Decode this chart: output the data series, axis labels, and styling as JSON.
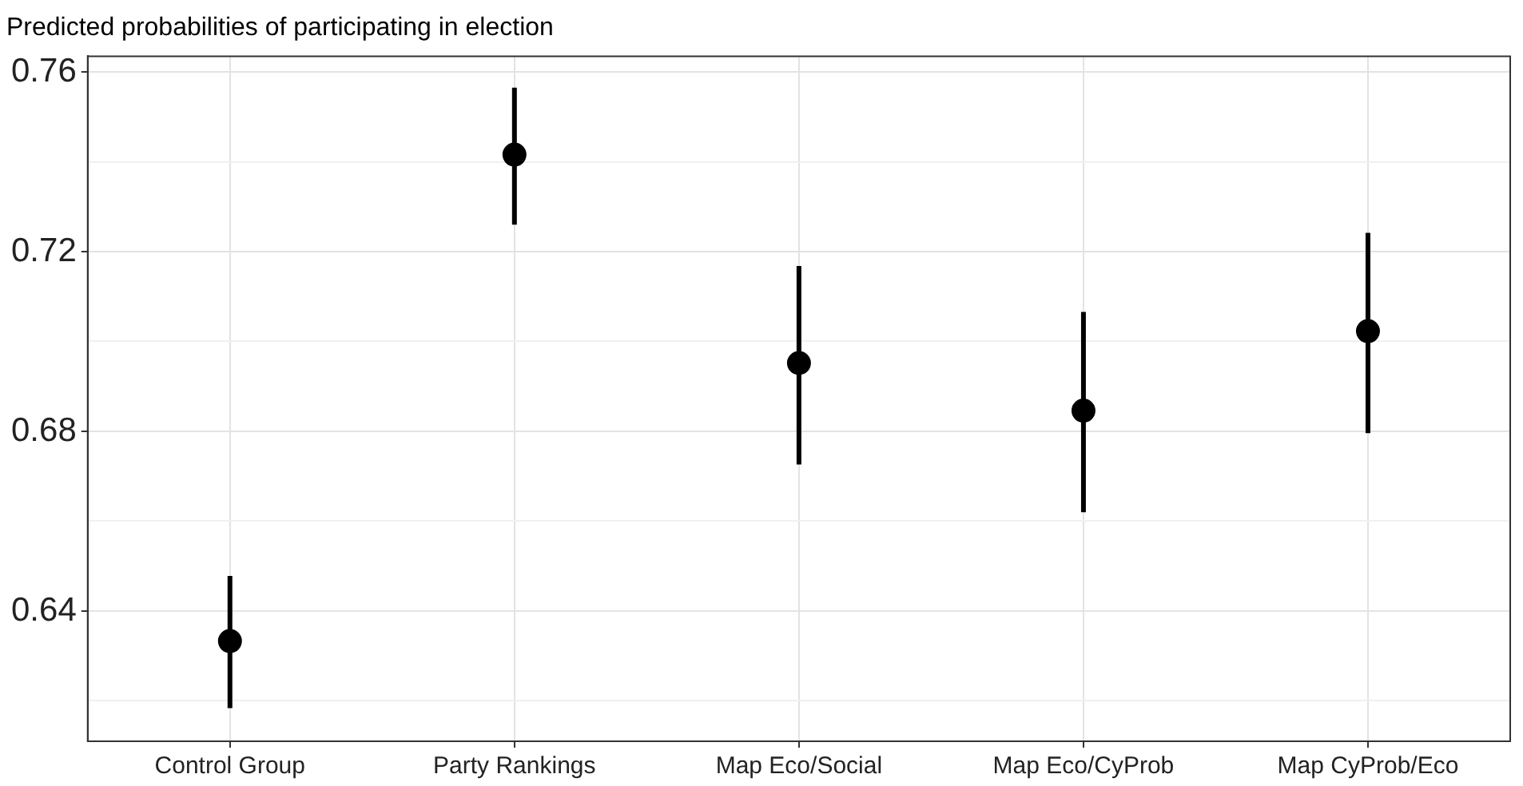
{
  "chart_data": {
    "type": "scatter",
    "title": "Predicted probabilities of participating in election",
    "categories": [
      "Control Group",
      "Party Rankings",
      "Map Eco/Social",
      "Map Eco/CyProb",
      "Map CyProb/Eco"
    ],
    "values": [
      0.6333,
      0.7416,
      0.6952,
      0.6846,
      0.7023
    ],
    "errors": [
      [
        0.6184,
        0.6478
      ],
      [
        0.726,
        0.7565
      ],
      [
        0.6726,
        0.7168
      ],
      [
        0.662,
        0.7066
      ],
      [
        0.6796,
        0.7242
      ]
    ],
    "color": "#000000",
    "marker": "circle",
    "grid": true,
    "legend": false,
    "ylim": [
      0.611,
      0.7635
    ],
    "yticks": [
      {
        "value": 0.62,
        "label": null
      },
      0.64,
      {
        "value": 0.66,
        "label": null
      },
      0.68,
      {
        "value": 0.7,
        "label": null
      },
      0.72,
      {
        "value": 0.74,
        "label": null
      },
      0.76
    ]
  }
}
